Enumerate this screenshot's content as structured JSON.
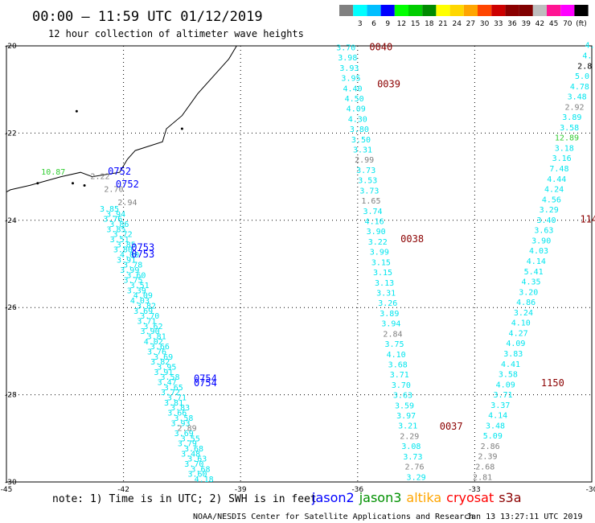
{
  "header": {
    "title": "00:00 – 11:59 UTC 01/12/2019",
    "subtitle": "12 hour collection of altimeter wave heights"
  },
  "colorbar": {
    "bins": [
      {
        "color": "#808080",
        "label": ""
      },
      {
        "color": "#00ffff",
        "label": "3"
      },
      {
        "color": "#00bfff",
        "label": "6"
      },
      {
        "color": "#0000ff",
        "label": "9"
      },
      {
        "color": "#00ff00",
        "label": "12"
      },
      {
        "color": "#00cd00",
        "label": "15"
      },
      {
        "color": "#008b00",
        "label": "18"
      },
      {
        "color": "#ffff00",
        "label": "21"
      },
      {
        "color": "#ffd700",
        "label": "24"
      },
      {
        "color": "#ffa500",
        "label": "27"
      },
      {
        "color": "#ff4500",
        "label": "30"
      },
      {
        "color": "#cd0000",
        "label": "33"
      },
      {
        "color": "#8b0000",
        "label": "36"
      },
      {
        "color": "#800000",
        "label": "39"
      },
      {
        "color": "#bebebe",
        "label": "42"
      },
      {
        "color": "#ff1493",
        "label": "45"
      },
      {
        "color": "#ff00ff",
        "label": "70"
      },
      {
        "color": "#000000",
        "label": "(ft)"
      }
    ]
  },
  "footer": {
    "note": "note: 1) Time is in UTC; 2) SWH is in feet",
    "credit": "NOAA/NESDIS Center for Satellite Applications and Research",
    "timestamp": "Jan 13 13:27:11 UTC 2019",
    "missions": [
      {
        "name": "jason2",
        "color": "#0000ff"
      },
      {
        "name": "jason3",
        "color": "#009000"
      },
      {
        "name": "altika",
        "color": "#ffa500"
      },
      {
        "name": "cryosat",
        "color": "#ff0000"
      },
      {
        "name": "s3a",
        "color": "#8b0000"
      }
    ]
  },
  "chart_data": {
    "type": "scatter",
    "title": "00:00 – 11:59 UTC 01/12/2019",
    "subtitle": "12 hour collection of altimeter wave heights",
    "xlim": [
      -45,
      -30
    ],
    "ylim": [
      -30,
      -20
    ],
    "x_ticks": [
      "-45",
      "-42",
      "-39",
      "-36",
      "-33",
      "-30"
    ],
    "y_ticks": [
      "-20",
      "-22",
      "-24",
      "-26",
      "-28",
      "-30"
    ],
    "grid": true,
    "colors": {
      "gray": "#808080",
      "cyan": "#00e5ee",
      "green": "#32cd32",
      "blue": "#0000ff",
      "darkred": "#8b0000"
    },
    "coastline": [
      [
        -39.1,
        -20.0
      ],
      [
        -39.3,
        -20.3
      ],
      [
        -39.7,
        -20.7
      ],
      [
        -40.1,
        -21.1
      ],
      [
        -40.5,
        -21.6
      ],
      [
        -40.9,
        -21.9
      ],
      [
        -41.0,
        -22.2
      ],
      [
        -41.7,
        -22.4
      ],
      [
        -41.9,
        -22.6
      ],
      [
        -42.1,
        -22.9
      ],
      [
        -42.8,
        -23.0
      ],
      [
        -43.1,
        -22.9
      ],
      [
        -43.6,
        -23.0
      ],
      [
        -44.0,
        -23.1
      ],
      [
        -44.4,
        -23.2
      ],
      [
        -44.9,
        -23.3
      ],
      [
        -45.0,
        -23.35
      ]
    ],
    "passes": [
      {
        "label": "0752",
        "color": "#0000ff",
        "label_points": [
          [
            -42.4,
            -22.95
          ],
          [
            -42.2,
            -23.25
          ]
        ]
      },
      {
        "label": "0753",
        "color": "#0000ff",
        "label_points": [
          [
            -41.8,
            -24.7
          ],
          [
            -41.8,
            -24.85
          ]
        ]
      },
      {
        "label": "0754",
        "color": "#0000ff",
        "label_points": [
          [
            -40.2,
            -27.7
          ],
          [
            -40.2,
            -27.8
          ]
        ]
      },
      {
        "label": "0040",
        "color": "#8b0000",
        "label_points": [
          [
            -35.7,
            -20.1
          ]
        ]
      },
      {
        "label": "0039",
        "color": "#8b0000",
        "label_points": [
          [
            -35.5,
            -20.95
          ]
        ]
      },
      {
        "label": "0038",
        "color": "#8b0000",
        "label_points": [
          [
            -34.9,
            -24.5
          ]
        ]
      },
      {
        "label": "0037",
        "color": "#8b0000",
        "label_points": [
          [
            -33.9,
            -28.8
          ]
        ]
      },
      {
        "label": "1150",
        "color": "#8b0000",
        "label_points": [
          [
            -31.3,
            -27.8
          ]
        ]
      },
      {
        "label": "114",
        "color": "#8b0000",
        "label_points": [
          [
            -30.3,
            -24.05
          ]
        ]
      }
    ],
    "tracks": [
      {
        "name": "0040",
        "x_start": -36.3,
        "x_end": -34.5,
        "y_start": -20.1,
        "y_end": -29.95,
        "values": [
          "3.70",
          "3.98",
          "3.93",
          "3.95",
          "4.40",
          "4.50",
          "4.09",
          "4.30",
          "3.80",
          "3.50",
          "3.31",
          "2.99",
          "3.73",
          "3.53",
          "3.73",
          "1.65",
          "3.74",
          "4.16",
          "3.90",
          "3.22",
          "3.99",
          "3.15",
          "3.15",
          "3.13",
          "3.31",
          "3.26",
          "3.89",
          "3.94",
          "2.84",
          "3.75",
          "4.10",
          "3.68",
          "3.71",
          "3.70",
          "3.63",
          "3.59",
          "3.97",
          "3.21",
          "2.29",
          "3.08",
          "3.73",
          "2.76",
          "3.29"
        ],
        "colors": [
          "c",
          "c",
          "c",
          "c",
          "c",
          "c",
          "c",
          "c",
          "c",
          "c",
          "c",
          "g",
          "c",
          "c",
          "c",
          "g",
          "c",
          "c",
          "c",
          "c",
          "c",
          "c",
          "c",
          "c",
          "c",
          "c",
          "c",
          "c",
          "g",
          "c",
          "c",
          "c",
          "c",
          "c",
          "c",
          "c",
          "c",
          "c",
          "g",
          "c",
          "c",
          "g",
          "c"
        ]
      },
      {
        "name": "1150",
        "x_start": -30.05,
        "x_end": -32.8,
        "y_start": -20.05,
        "y_end": -29.95,
        "values": [
          "4.",
          "4.",
          "2.8",
          "5.0",
          "4.78",
          "3.48",
          "2.92",
          "3.89",
          "3.58",
          "12.89",
          "3.18",
          "3.16",
          "7.48",
          "4.44",
          "4.24",
          "4.56",
          "3.29",
          "3.40",
          "3.63",
          "3.90",
          "4.03",
          "4.14",
          "5.41",
          "4.35",
          "3.20",
          "4.86",
          "3.24",
          "4.10",
          "4.27",
          "4.09",
          "3.83",
          "4.41",
          "3.58",
          "4.09",
          "3.71",
          "3.37",
          "4.14",
          "3.48",
          "5.09",
          "2.86",
          "2.39",
          "2.68",
          "2.81"
        ],
        "colors": [
          "c",
          "c",
          "k",
          "c",
          "c",
          "c",
          "g",
          "c",
          "c",
          "l",
          "c",
          "c",
          "c",
          "c",
          "c",
          "c",
          "c",
          "c",
          "c",
          "c",
          "c",
          "c",
          "c",
          "c",
          "c",
          "c",
          "c",
          "c",
          "c",
          "c",
          "c",
          "c",
          "c",
          "c",
          "c",
          "c",
          "c",
          "c",
          "c",
          "g",
          "g",
          "g",
          "g"
        ]
      },
      {
        "name": "0754-gray",
        "x_start": -42.6,
        "x_end": -41.9,
        "y_start": -23.05,
        "y_end": -23.65,
        "values": [
          "2.22",
          "2.70",
          "2.94"
        ],
        "colors": [
          "g",
          "g",
          "g"
        ]
      },
      {
        "name": "0753-green",
        "x_start": -43.8,
        "x_end": -43.8,
        "y_start": -22.95,
        "y_end": -22.95,
        "values": [
          "10.87"
        ],
        "colors": [
          "l"
        ]
      }
    ],
    "swath": {
      "x_start": -42.3,
      "x_end": -40.0,
      "y_start": -23.8,
      "y_end": -30.0,
      "values": [
        "3.85",
        "3.94",
        "3.76",
        "3.86",
        "3.85",
        "3.72",
        "3.51",
        "3.85",
        "3.80",
        "4.00",
        "3.91",
        "3.78",
        "3.99",
        "3.60",
        "3.75",
        "3.51",
        "3.39",
        "4.09",
        "4.03",
        "3.82",
        "3.69",
        "3.70",
        "3.71",
        "3.62",
        "3.90",
        "3.81",
        "4.02",
        "3.66",
        "3.76",
        "3.69",
        "3.82",
        "3.95",
        "3.91",
        "3.58",
        "3.47",
        "3.65",
        "3.72",
        "3.71",
        "3.81",
        "3.83",
        "3.66",
        "3.58",
        "3.93",
        "2.89",
        "3.69",
        "3.55",
        "3.79",
        "3.68",
        "3.48",
        "3.63",
        "3.70",
        "3.68",
        "3.60",
        "4.18"
      ],
      "gray_index": 43
    }
  }
}
